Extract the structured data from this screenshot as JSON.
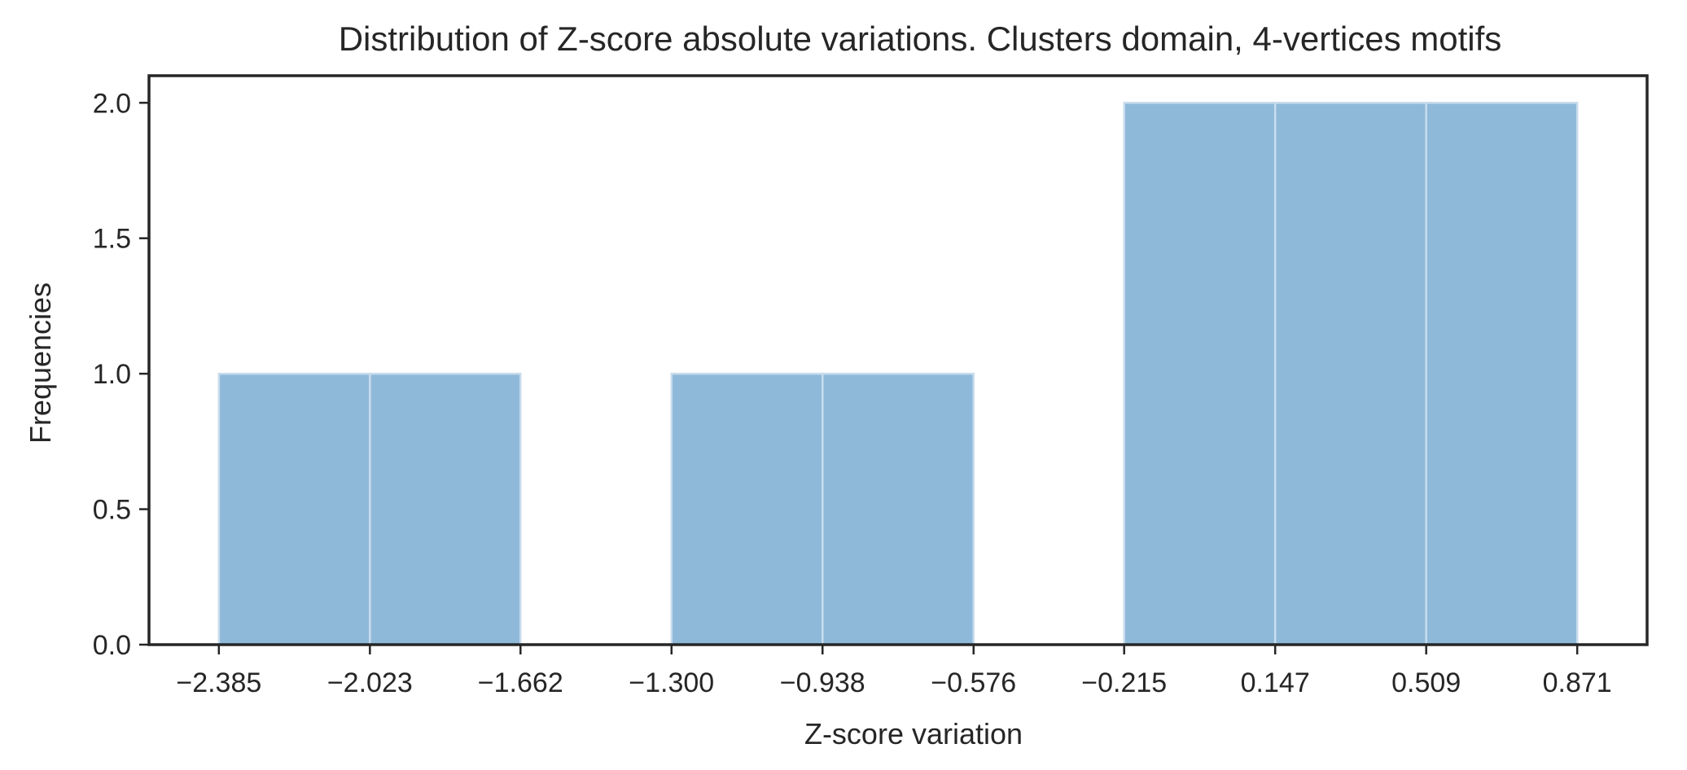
{
  "chart_data": {
    "type": "bar",
    "title": "Distribution of Z-score absolute variations. Clusters domain, 4-vertices motifs",
    "xlabel": "Z-score variation",
    "ylabel": "Frequencies",
    "bin_edges": [
      -2.385,
      -2.023,
      -1.662,
      -1.3,
      -0.938,
      -0.576,
      -0.215,
      0.147,
      0.509,
      0.871
    ],
    "values": [
      1,
      1,
      0,
      1,
      1,
      0,
      2,
      2,
      2
    ],
    "xtick_labels": [
      "−2.385",
      "−2.023",
      "−1.662",
      "−1.300",
      "−0.938",
      "−0.576",
      "−0.215",
      "0.147",
      "0.509",
      "0.871"
    ],
    "yticks": [
      0.0,
      0.5,
      1.0,
      1.5,
      2.0
    ],
    "ytick_labels": [
      "0.0",
      "0.5",
      "1.0",
      "1.5",
      "2.0"
    ],
    "xlim": [
      -2.5525,
      1.0385
    ],
    "ylim": [
      0,
      2.1
    ],
    "grid": false,
    "legend": false,
    "bar_color": "#8fb9d9",
    "bar_edge_color": "#c8dced"
  }
}
